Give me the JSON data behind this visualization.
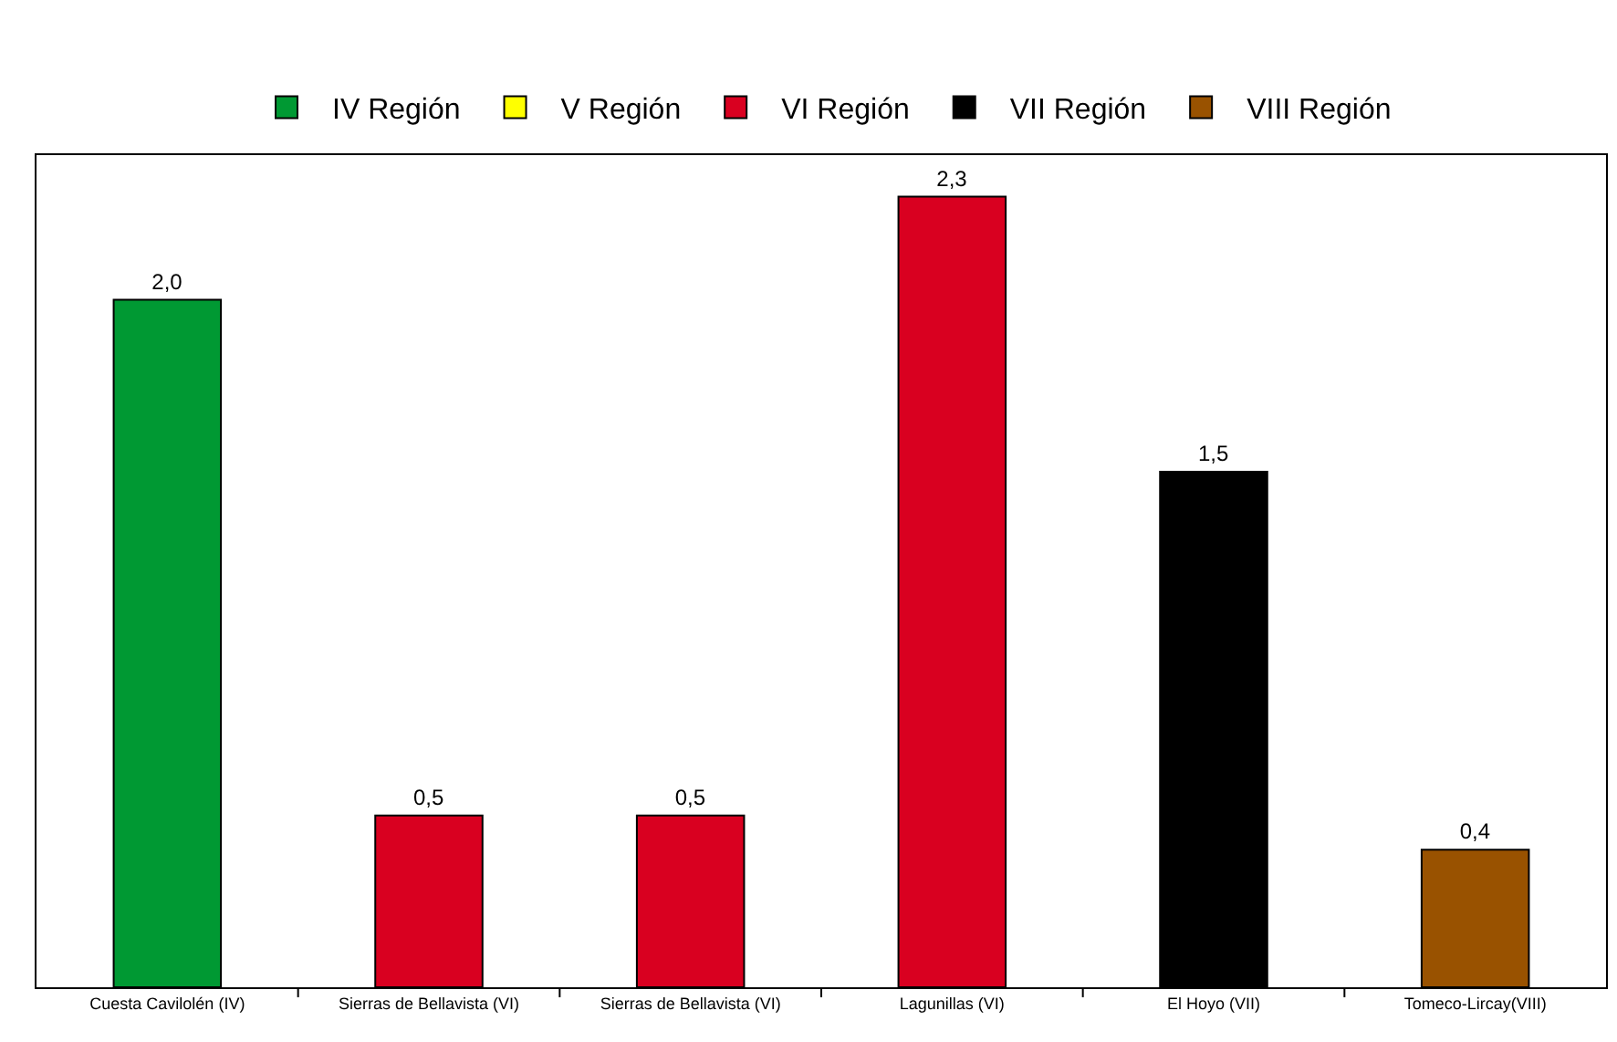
{
  "chart_data": {
    "type": "bar",
    "categories": [
      "Cuesta Cavilolén (IV)",
      "Sierras de Bellavista (VI)",
      "Sierras de Bellavista (VI)",
      "Lagunillas (VI)",
      "El Hoyo (VII)",
      "Tomeco-Lircay(VIII)"
    ],
    "series": [
      {
        "name": "IV Región",
        "color": "#009933",
        "values": [
          2.0,
          null,
          null,
          null,
          null,
          null
        ],
        "value_labels": [
          "2,0",
          null,
          null,
          null,
          null,
          null
        ]
      },
      {
        "name": "V Región",
        "color": "#ffff00",
        "values": [
          null,
          null,
          null,
          null,
          null,
          null
        ],
        "value_labels": [
          null,
          null,
          null,
          null,
          null,
          null
        ]
      },
      {
        "name": "VI Región",
        "color": "#d90020",
        "values": [
          null,
          0.5,
          0.5,
          2.3,
          null,
          null
        ],
        "value_labels": [
          null,
          "0,5",
          "0,5",
          "2,3",
          null,
          null
        ]
      },
      {
        "name": "VII Región",
        "color": "#000000",
        "values": [
          null,
          null,
          null,
          null,
          1.5,
          null
        ],
        "value_labels": [
          null,
          null,
          null,
          null,
          "1,5",
          null
        ]
      },
      {
        "name": "VIII Región",
        "color": "#995200",
        "values": [
          null,
          null,
          null,
          null,
          null,
          0.4
        ],
        "value_labels": [
          null,
          null,
          null,
          null,
          null,
          "0,4"
        ]
      }
    ],
    "legend": "top"
  }
}
